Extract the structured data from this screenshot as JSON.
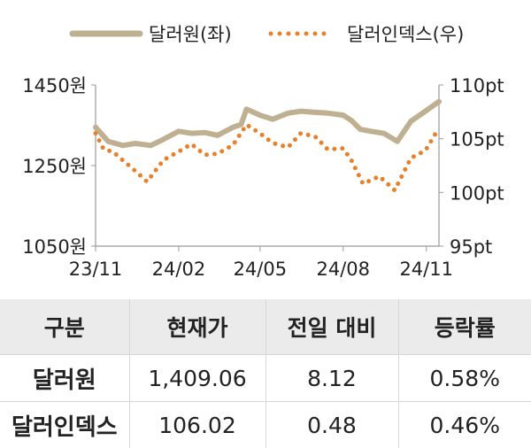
{
  "chart_data": {
    "type": "line",
    "legend": {
      "position": "top",
      "entries": [
        "달러원(좌)",
        "달러인덱스(우)"
      ]
    },
    "x_ticks": [
      "23/11",
      "24/02",
      "24/05",
      "24/08",
      "24/11"
    ],
    "y_left": {
      "ticks": [
        "1450원",
        "1250원",
        "1050원"
      ],
      "range": [
        1050,
        1450
      ]
    },
    "y_right": {
      "ticks": [
        "110pt",
        "105pt",
        "100pt",
        "95pt"
      ],
      "range": [
        95,
        110
      ]
    },
    "grid": false,
    "series": [
      {
        "name": "달러원(좌)",
        "axis": "left",
        "style": "solid",
        "color": "#bfb092",
        "x": [
          "2023-11-01",
          "2023-11-15",
          "2023-12-01",
          "2023-12-15",
          "2024-01-01",
          "2024-01-15",
          "2024-02-01",
          "2024-02-15",
          "2024-03-01",
          "2024-03-15",
          "2024-04-01",
          "2024-04-10",
          "2024-04-16",
          "2024-05-01",
          "2024-05-15",
          "2024-06-01",
          "2024-06-15",
          "2024-07-01",
          "2024-07-15",
          "2024-08-01",
          "2024-08-10",
          "2024-08-20",
          "2024-09-01",
          "2024-09-15",
          "2024-09-30",
          "2024-10-15",
          "2024-10-31",
          "2024-11-15"
        ],
        "values": [
          1345,
          1310,
          1300,
          1305,
          1300,
          1315,
          1335,
          1330,
          1332,
          1325,
          1345,
          1352,
          1390,
          1375,
          1365,
          1380,
          1385,
          1382,
          1380,
          1375,
          1362,
          1340,
          1335,
          1330,
          1310,
          1360,
          1385,
          1409
        ]
      },
      {
        "name": "달러인덱스(우)",
        "axis": "right",
        "style": "dotted",
        "color": "#e8802a",
        "x": [
          "2023-11-01",
          "2023-11-10",
          "2023-11-20",
          "2023-12-01",
          "2023-12-15",
          "2023-12-28",
          "2024-01-15",
          "2024-02-01",
          "2024-02-15",
          "2024-03-01",
          "2024-03-15",
          "2024-04-01",
          "2024-04-16",
          "2024-05-01",
          "2024-05-15",
          "2024-06-01",
          "2024-06-15",
          "2024-07-01",
          "2024-07-15",
          "2024-08-01",
          "2024-08-10",
          "2024-08-23",
          "2024-09-10",
          "2024-09-27",
          "2024-10-15",
          "2024-10-31",
          "2024-11-15"
        ],
        "values": [
          105.5,
          104.0,
          103.8,
          103.0,
          102.0,
          101.0,
          103.0,
          103.8,
          104.5,
          103.5,
          103.6,
          104.4,
          106.3,
          105.5,
          104.6,
          104.2,
          105.5,
          105.2,
          104.0,
          104.1,
          103.0,
          100.8,
          101.5,
          100.2,
          103.2,
          103.9,
          106.0
        ]
      }
    ]
  },
  "table": {
    "headers": [
      "구분",
      "현재가",
      "전일 대비",
      "등락률"
    ],
    "rows": [
      [
        "달러원",
        "1,409.06",
        "8.12",
        "0.58%"
      ],
      [
        "달러인덱스",
        "106.02",
        "0.48",
        "0.46%"
      ]
    ]
  }
}
